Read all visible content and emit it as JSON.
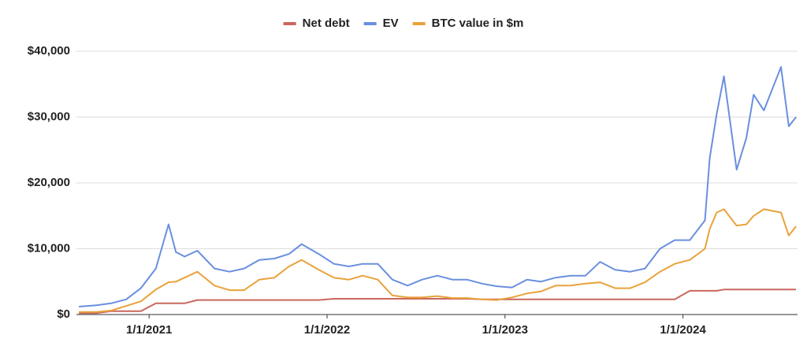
{
  "chart_data": {
    "type": "line",
    "x": [
      "8/10/2020",
      "9/15/2020",
      "10/15/2020",
      "11/15/2020",
      "12/15/2020",
      "1/15/2021",
      "2/10/2021",
      "2/25/2021",
      "3/15/2021",
      "4/10/2021",
      "5/15/2021",
      "6/15/2021",
      "7/15/2021",
      "8/15/2021",
      "9/15/2021",
      "10/15/2021",
      "11/10/2021",
      "12/15/2021",
      "1/15/2022",
      "2/15/2022",
      "3/15/2022",
      "4/15/2022",
      "5/15/2022",
      "6/15/2022",
      "7/15/2022",
      "8/15/2022",
      "9/15/2022",
      "10/15/2022",
      "11/15/2022",
      "12/15/2022",
      "1/15/2023",
      "2/15/2023",
      "3/15/2023",
      "4/15/2023",
      "5/15/2023",
      "6/15/2023",
      "7/15/2023",
      "8/15/2023",
      "9/15/2023",
      "10/15/2023",
      "11/15/2023",
      "12/15/2023",
      "1/15/2024",
      "2/15/2024",
      "2/25/2024",
      "3/10/2024",
      "3/25/2024",
      "4/20/2024",
      "5/10/2024",
      "5/25/2024",
      "6/15/2024",
      "7/20/2024",
      "8/5/2024",
      "8/20/2024"
    ],
    "series": [
      {
        "name": "Net debt",
        "color": "#c9675d",
        "values": [
          200,
          200,
          500,
          500,
          500,
          1700,
          1700,
          1700,
          1700,
          2200,
          2200,
          2200,
          2200,
          2200,
          2200,
          2200,
          2200,
          2200,
          2400,
          2400,
          2400,
          2400,
          2400,
          2400,
          2400,
          2400,
          2400,
          2400,
          2300,
          2300,
          2300,
          2300,
          2300,
          2300,
          2300,
          2300,
          2300,
          2300,
          2300,
          2300,
          2300,
          2300,
          3600,
          3600,
          3600,
          3600,
          3800,
          3800,
          3800,
          3800,
          3800,
          3800,
          3800,
          3800
        ]
      },
      {
        "name": "EV",
        "color": "#6a8fdf",
        "values": [
          1200,
          1400,
          1700,
          2300,
          4000,
          7000,
          13700,
          9500,
          8800,
          9700,
          7000,
          6500,
          7000,
          8300,
          8500,
          9200,
          10700,
          9200,
          7700,
          7300,
          7700,
          7700,
          5300,
          4400,
          5300,
          5900,
          5300,
          5300,
          4700,
          4300,
          4100,
          5300,
          5000,
          5600,
          5900,
          5900,
          8000,
          6800,
          6500,
          7000,
          10000,
          11300,
          11300,
          14300,
          23800,
          30400,
          36200,
          22000,
          26800,
          33400,
          31000,
          37600,
          28600,
          30000
        ]
      },
      {
        "name": "BTC value in $m",
        "color": "#e9a23b",
        "values": [
          400,
          400,
          600,
          1300,
          2000,
          3800,
          4900,
          5000,
          5600,
          6500,
          4400,
          3700,
          3700,
          5300,
          5600,
          7300,
          8300,
          6800,
          5600,
          5300,
          5900,
          5300,
          2900,
          2600,
          2600,
          2800,
          2500,
          2500,
          2300,
          2200,
          2600,
          3200,
          3500,
          4400,
          4400,
          4700,
          4900,
          4000,
          4000,
          4900,
          6500,
          7700,
          8300,
          10000,
          13000,
          15500,
          16000,
          13500,
          13700,
          15000,
          16000,
          15500,
          12000,
          13400
        ]
      }
    ],
    "xlim": [
      "8/5/2020",
      "8/23/2024"
    ],
    "xticks": [
      "1/1/2021",
      "1/1/2022",
      "1/1/2023",
      "1/1/2024"
    ],
    "ylim": [
      0,
      40000
    ],
    "yticks": [
      {
        "value": 0,
        "label": "$0"
      },
      {
        "value": 10000,
        "label": "$10,000"
      },
      {
        "value": 20000,
        "label": "$20,000"
      },
      {
        "value": 30000,
        "label": "$30,000"
      },
      {
        "value": 40000,
        "label": "$40,000"
      }
    ],
    "grid": true,
    "legend": "top"
  }
}
